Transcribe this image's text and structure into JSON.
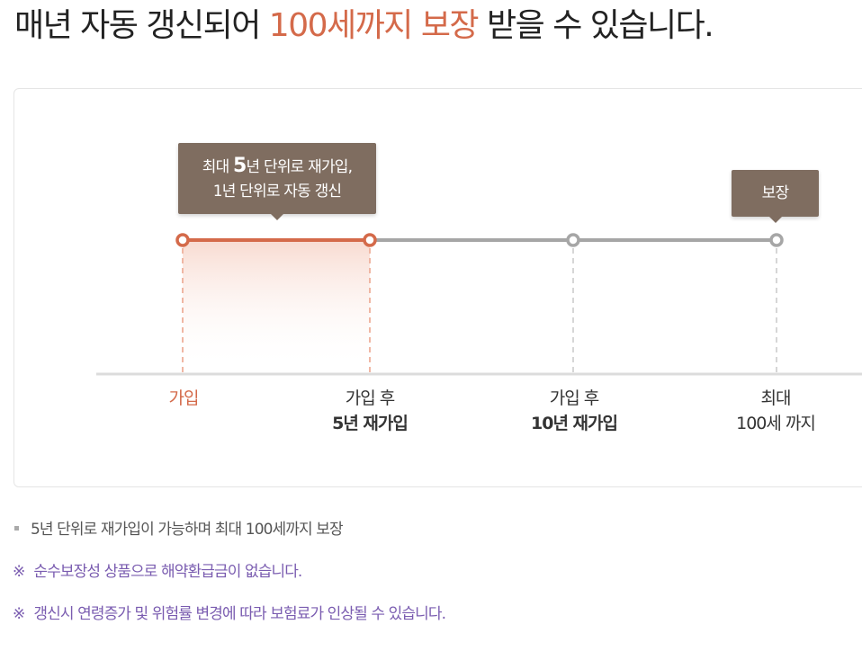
{
  "headline": {
    "prefix": "매년 자동 갱신되어 ",
    "highlight": "100세까지 보장",
    "suffix": " 받을 수 있습니다."
  },
  "tooltip_renew": {
    "line1_pre": "최대 ",
    "line1_num": "5",
    "line1_post": "년 단위로 재가입,",
    "line2": "1년 단위로 자동 갱신"
  },
  "tooltip_cover": {
    "label": "보장"
  },
  "timeline_labels": [
    {
      "line1": "가입",
      "line2": ""
    },
    {
      "line1": "가입 후",
      "line2": "5년 재가입"
    },
    {
      "line1": "가입 후",
      "line2": "10년 재가입"
    },
    {
      "line1": "최대",
      "line2": "100세 까지"
    }
  ],
  "notes": [
    {
      "mark": "",
      "text": "5년 단위로 재가입이 가능하며 최대 100세까지 보장"
    },
    {
      "mark": "※",
      "text": "순수보장성 상품으로 해약환급금이 없습니다."
    },
    {
      "mark": "※",
      "text": "갱신시 연령증가 및 위험률 변경에 따라 보험료가 인상될 수 있습니다."
    }
  ],
  "colors": {
    "accent": "#d46a4a",
    "tooltip_bg": "#7f6d60",
    "line_gray": "#a6a6a6",
    "note_purple": "#7a5cb0"
  }
}
